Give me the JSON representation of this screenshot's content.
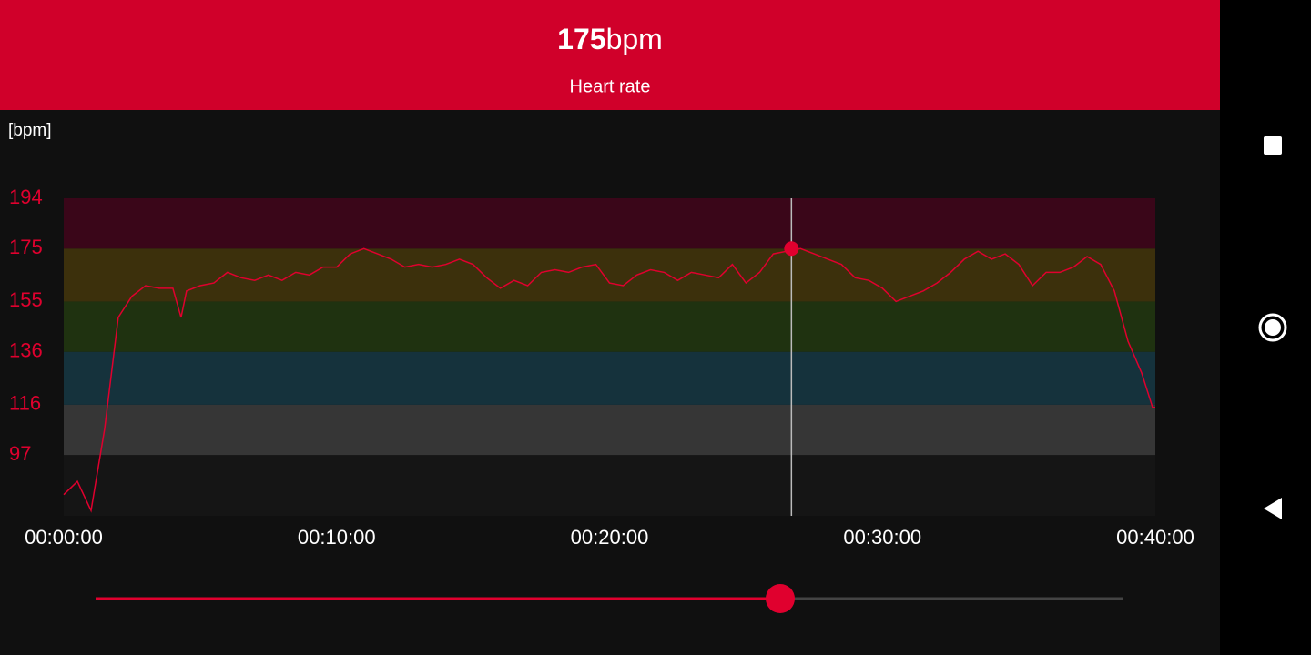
{
  "header": {
    "value": "175",
    "unit": "bpm",
    "label": "Heart rate"
  },
  "chart_data": {
    "type": "line",
    "y_label": "[bpm]",
    "x": [
      0,
      30,
      60,
      90,
      120,
      150,
      180,
      210,
      240,
      258,
      270,
      300,
      330,
      360,
      390,
      420,
      450,
      480,
      510,
      540,
      570,
      600,
      630,
      660,
      690,
      720,
      750,
      780,
      810,
      840,
      870,
      900,
      930,
      960,
      990,
      1020,
      1050,
      1080,
      1110,
      1140,
      1170,
      1200,
      1230,
      1260,
      1290,
      1320,
      1350,
      1380,
      1410,
      1440,
      1470,
      1500,
      1530,
      1560,
      1590,
      1620,
      1650,
      1680,
      1710,
      1740,
      1770,
      1800,
      1830,
      1860,
      1890,
      1920,
      1950,
      1980,
      2010,
      2040,
      2070,
      2100,
      2130,
      2160,
      2190,
      2220,
      2250,
      2280,
      2310,
      2340,
      2370,
      2394,
      2400
    ],
    "values": [
      82,
      87,
      76,
      107,
      149,
      157,
      161,
      160,
      160,
      149,
      159,
      161,
      162,
      166,
      164,
      163,
      165,
      163,
      166,
      165,
      168,
      168,
      173,
      175,
      173,
      171,
      168,
      169,
      168,
      169,
      171,
      169,
      164,
      160,
      163,
      161,
      166,
      167,
      166,
      168,
      169,
      162,
      161,
      165,
      167,
      166,
      163,
      166,
      165,
      164,
      169,
      162,
      166,
      173,
      174,
      175,
      173,
      171,
      169,
      164,
      163,
      160,
      155,
      157,
      159,
      162,
      166,
      171,
      174,
      171,
      173,
      169,
      161,
      166,
      166,
      168,
      172,
      169,
      159,
      140,
      128,
      115,
      115
    ],
    "color": "#e0002e",
    "xlim": [
      0,
      2400
    ],
    "xticks": [
      {
        "value": 0,
        "label": "00:00:00"
      },
      {
        "value": 600,
        "label": "00:10:00"
      },
      {
        "value": 1200,
        "label": "00:20:00"
      },
      {
        "value": 1800,
        "label": "00:30:00"
      },
      {
        "value": 2400,
        "label": "00:40:00"
      }
    ],
    "ylim": [
      74,
      194
    ],
    "yticks": [
      97,
      116,
      136,
      155,
      175,
      194
    ],
    "zones": [
      {
        "from": 97,
        "to": 116,
        "color": "#363636"
      },
      {
        "from": 116,
        "to": 136,
        "color": "#15323c"
      },
      {
        "from": 136,
        "to": 155,
        "color": "#1f3210"
      },
      {
        "from": 155,
        "to": 175,
        "color": "#3c300c"
      },
      {
        "from": 175,
        "to": 194,
        "color": "#3a0619"
      }
    ],
    "cursor": {
      "x": 1600,
      "value": 175
    }
  }
}
